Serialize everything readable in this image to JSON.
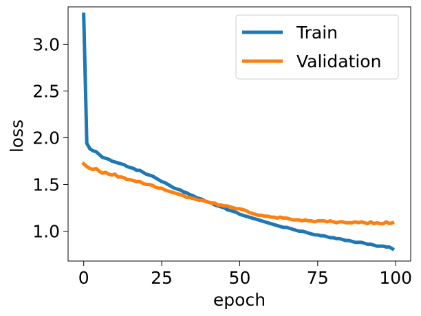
{
  "chart_data": {
    "type": "line",
    "title": "",
    "xlabel": "epoch",
    "ylabel": "loss",
    "xlim": [
      -5,
      104.8
    ],
    "ylim": [
      0.68,
      3.4
    ],
    "xticks": [
      0,
      25,
      50,
      75,
      100
    ],
    "xtick_labels": [
      "0",
      "25",
      "50",
      "75",
      "100"
    ],
    "yticks": [
      1.0,
      1.5,
      2.0,
      2.5,
      3.0
    ],
    "ytick_labels": [
      "1.0",
      "1.5",
      "2.0",
      "2.5",
      "3.0"
    ],
    "grid": false,
    "legend": {
      "position": "top-right",
      "entries": [
        "Train",
        "Validation"
      ]
    },
    "series": [
      {
        "name": "Train",
        "color": "#1f77b4",
        "x": [
          0,
          1,
          2,
          3,
          4,
          5,
          6,
          7,
          8,
          9,
          10,
          11,
          12,
          13,
          14,
          15,
          16,
          17,
          18,
          19,
          20,
          21,
          22,
          23,
          24,
          25,
          26,
          27,
          28,
          29,
          30,
          31,
          32,
          33,
          34,
          35,
          36,
          37,
          38,
          39,
          40,
          41,
          42,
          43,
          44,
          45,
          46,
          47,
          48,
          49,
          50,
          51,
          52,
          53,
          54,
          55,
          56,
          57,
          58,
          59,
          60,
          61,
          62,
          63,
          64,
          65,
          66,
          67,
          68,
          69,
          70,
          71,
          72,
          73,
          74,
          75,
          76,
          77,
          78,
          79,
          80,
          81,
          82,
          83,
          84,
          85,
          86,
          87,
          88,
          89,
          90,
          91,
          92,
          93,
          94,
          95,
          96,
          97,
          98,
          99
        ],
        "values": [
          3.32,
          1.94,
          1.88,
          1.86,
          1.85,
          1.82,
          1.79,
          1.78,
          1.77,
          1.75,
          1.74,
          1.73,
          1.72,
          1.71,
          1.69,
          1.68,
          1.67,
          1.65,
          1.65,
          1.63,
          1.61,
          1.6,
          1.59,
          1.57,
          1.55,
          1.53,
          1.52,
          1.5,
          1.48,
          1.46,
          1.45,
          1.44,
          1.42,
          1.41,
          1.39,
          1.38,
          1.36,
          1.35,
          1.34,
          1.32,
          1.31,
          1.3,
          1.28,
          1.27,
          1.26,
          1.25,
          1.23,
          1.22,
          1.21,
          1.2,
          1.18,
          1.17,
          1.16,
          1.15,
          1.14,
          1.13,
          1.12,
          1.11,
          1.1,
          1.09,
          1.08,
          1.07,
          1.06,
          1.05,
          1.04,
          1.04,
          1.03,
          1.02,
          1.01,
          1.0,
          1.0,
          0.99,
          0.98,
          0.97,
          0.96,
          0.96,
          0.95,
          0.95,
          0.94,
          0.93,
          0.93,
          0.92,
          0.92,
          0.91,
          0.9,
          0.9,
          0.89,
          0.88,
          0.88,
          0.88,
          0.87,
          0.86,
          0.86,
          0.85,
          0.84,
          0.84,
          0.84,
          0.83,
          0.83,
          0.81
        ]
      },
      {
        "name": "Validation",
        "color": "#ff7f0e",
        "x": [
          0,
          1,
          2,
          3,
          4,
          5,
          6,
          7,
          8,
          9,
          10,
          11,
          12,
          13,
          14,
          15,
          16,
          17,
          18,
          19,
          20,
          21,
          22,
          23,
          24,
          25,
          26,
          27,
          28,
          29,
          30,
          31,
          32,
          33,
          34,
          35,
          36,
          37,
          38,
          39,
          40,
          41,
          42,
          43,
          44,
          45,
          46,
          47,
          48,
          49,
          50,
          51,
          52,
          53,
          54,
          55,
          56,
          57,
          58,
          59,
          60,
          61,
          62,
          63,
          64,
          65,
          66,
          67,
          68,
          69,
          70,
          71,
          72,
          73,
          74,
          75,
          76,
          77,
          78,
          79,
          80,
          81,
          82,
          83,
          84,
          85,
          86,
          87,
          88,
          89,
          90,
          91,
          92,
          93,
          94,
          95,
          96,
          97,
          98,
          99
        ],
        "values": [
          1.72,
          1.69,
          1.67,
          1.66,
          1.67,
          1.64,
          1.62,
          1.63,
          1.61,
          1.6,
          1.61,
          1.58,
          1.58,
          1.57,
          1.55,
          1.55,
          1.54,
          1.53,
          1.53,
          1.51,
          1.5,
          1.5,
          1.49,
          1.47,
          1.46,
          1.46,
          1.44,
          1.43,
          1.42,
          1.41,
          1.4,
          1.39,
          1.38,
          1.36,
          1.36,
          1.35,
          1.34,
          1.33,
          1.33,
          1.32,
          1.31,
          1.3,
          1.3,
          1.28,
          1.28,
          1.27,
          1.27,
          1.26,
          1.25,
          1.24,
          1.24,
          1.23,
          1.22,
          1.2,
          1.19,
          1.18,
          1.17,
          1.17,
          1.16,
          1.16,
          1.15,
          1.15,
          1.14,
          1.15,
          1.14,
          1.14,
          1.13,
          1.12,
          1.12,
          1.12,
          1.11,
          1.12,
          1.11,
          1.11,
          1.1,
          1.11,
          1.11,
          1.11,
          1.1,
          1.11,
          1.1,
          1.09,
          1.1,
          1.1,
          1.09,
          1.09,
          1.09,
          1.1,
          1.09,
          1.1,
          1.09,
          1.08,
          1.1,
          1.08,
          1.09,
          1.08,
          1.08,
          1.1,
          1.08,
          1.09
        ]
      }
    ]
  }
}
